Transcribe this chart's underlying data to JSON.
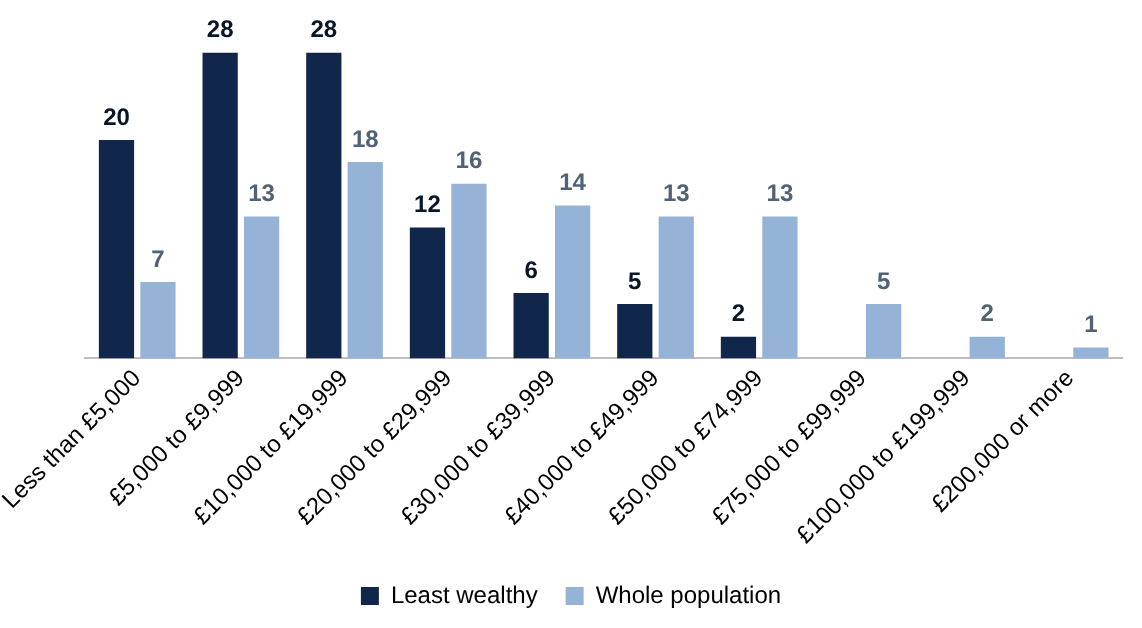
{
  "chart_data": {
    "type": "bar",
    "categories": [
      "Less than £5,000",
      "£5,000 to £9,999",
      "£10,000 to £19,999",
      "£20,000 to £29,999",
      "£30,000 to £39,999",
      "£40,000 to £49,999",
      "£50,000 to £74,999",
      "£75,000 to £99,999",
      "£100,000 to £199,999",
      "£200,000 or more"
    ],
    "series": [
      {
        "name": "Least wealthy",
        "color": "#10264a",
        "values": [
          20,
          28,
          28,
          12,
          6,
          5,
          2,
          null,
          null,
          null
        ]
      },
      {
        "name": "Whole population",
        "color": "#95b3d7",
        "values": [
          7,
          13,
          18,
          16,
          14,
          13,
          13,
          5,
          2,
          1
        ]
      }
    ],
    "data_labels": true,
    "legend": "bottom",
    "grid": false
  }
}
